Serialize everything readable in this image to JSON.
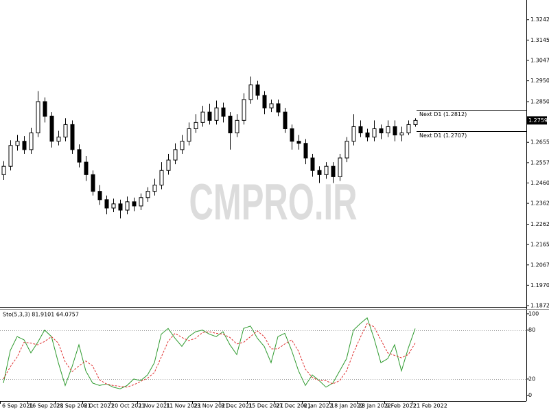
{
  "chart_data": [
    {
      "type": "candlestick",
      "watermark": "CMPRO.IR",
      "categories": [
        "6 Sep 2021",
        null,
        null,
        null,
        "16 Sep 2021",
        null,
        null,
        null,
        "28 Sep 2021",
        null,
        null,
        null,
        "8 Oct 2021",
        null,
        null,
        null,
        "20 Oct 2021",
        null,
        null,
        null,
        "1 Nov 2021",
        null,
        null,
        null,
        "11 Nov 2021",
        null,
        null,
        null,
        "23 Nov 2021",
        null,
        null,
        null,
        "3 Dec 2021",
        null,
        null,
        null,
        "15 Dec 2021",
        null,
        null,
        null,
        "27 Dec 2021",
        null,
        null,
        null,
        "6 Jan 2022",
        null,
        null,
        null,
        "18 Jan 2022",
        null,
        null,
        null,
        "28 Jan 2022",
        null,
        null,
        null,
        "9 Feb 2022",
        null,
        null,
        null,
        "21 Feb 2022"
      ],
      "open": [
        1.25,
        1.254,
        1.264,
        1.266,
        1.262,
        1.27,
        1.285,
        1.278,
        1.266,
        1.268,
        1.274,
        1.262,
        1.256,
        1.25,
        1.242,
        1.238,
        1.234,
        1.236,
        1.233,
        1.237,
        1.235,
        1.239,
        1.242,
        1.245,
        1.252,
        1.257,
        1.262,
        1.266,
        1.272,
        1.275,
        1.28,
        1.276,
        1.282,
        1.278,
        1.27,
        1.276,
        1.286,
        1.293,
        1.288,
        1.282,
        1.284,
        1.28,
        1.272,
        1.266,
        1.265,
        1.258,
        1.252,
        1.25,
        1.254,
        1.249,
        1.258,
        1.266,
        1.273,
        1.27,
        1.268,
        1.272,
        1.27,
        1.273,
        1.269,
        1.27,
        1.274
      ],
      "high": [
        1.2565,
        1.2665,
        1.269,
        1.2685,
        1.2725,
        1.29,
        1.287,
        1.28,
        1.271,
        1.277,
        1.276,
        1.2645,
        1.259,
        1.252,
        1.245,
        1.24,
        1.2385,
        1.238,
        1.2395,
        1.239,
        1.241,
        1.244,
        1.248,
        1.256,
        1.26,
        1.265,
        1.269,
        1.275,
        1.279,
        1.283,
        1.284,
        1.2855,
        1.2845,
        1.28,
        1.279,
        1.289,
        1.297,
        1.295,
        1.29,
        1.286,
        1.286,
        1.282,
        1.274,
        1.269,
        1.267,
        1.26,
        1.254,
        1.256,
        1.256,
        1.26,
        1.268,
        1.279,
        1.276,
        1.272,
        1.276,
        1.274,
        1.276,
        1.276,
        1.273,
        1.276,
        1.277
      ],
      "low": [
        1.2475,
        1.252,
        1.2615,
        1.26,
        1.26,
        1.268,
        1.275,
        1.263,
        1.264,
        1.266,
        1.26,
        1.2535,
        1.247,
        1.24,
        1.2355,
        1.231,
        1.232,
        1.229,
        1.231,
        1.2325,
        1.233,
        1.237,
        1.24,
        1.243,
        1.25,
        1.255,
        1.26,
        1.264,
        1.27,
        1.273,
        1.274,
        1.274,
        1.275,
        1.262,
        1.268,
        1.274,
        1.284,
        1.286,
        1.279,
        1.28,
        1.278,
        1.27,
        1.262,
        1.262,
        1.255,
        1.249,
        1.246,
        1.248,
        1.246,
        1.247,
        1.256,
        1.264,
        1.268,
        1.266,
        1.266,
        1.267,
        1.268,
        1.266,
        1.266,
        1.269,
        1.273
      ],
      "close": [
        1.254,
        1.264,
        1.266,
        1.262,
        1.27,
        1.285,
        1.278,
        1.266,
        1.268,
        1.274,
        1.262,
        1.256,
        1.25,
        1.242,
        1.238,
        1.234,
        1.236,
        1.233,
        1.237,
        1.235,
        1.239,
        1.242,
        1.245,
        1.252,
        1.257,
        1.262,
        1.266,
        1.272,
        1.275,
        1.28,
        1.276,
        1.282,
        1.278,
        1.27,
        1.276,
        1.286,
        1.293,
        1.288,
        1.282,
        1.284,
        1.28,
        1.272,
        1.266,
        1.265,
        1.258,
        1.252,
        1.25,
        1.254,
        1.249,
        1.258,
        1.266,
        1.273,
        1.27,
        1.268,
        1.272,
        1.27,
        1.273,
        1.269,
        1.27,
        1.274,
        1.27599
      ],
      "ylim": [
        1.1866,
        1.3337
      ],
      "yticks": [
        1.32425,
        {
          "value": 1.3145,
          "label": "1.31450"
        },
        1.30475,
        {
          "value": 1.295,
          "label": "1.29500"
        },
        {
          "value": 1.285,
          "label": "1.28500"
        },
        {
          "value": 1.2655,
          "label": "1.26550"
        },
        1.25575,
        {
          "value": 1.246,
          "label": "1.24600"
        },
        1.23625,
        1.22625,
        {
          "value": 1.2165,
          "label": "1.21650"
        },
        1.20675,
        {
          "value": 1.197,
          "label": "1.19700"
        },
        1.18725
      ],
      "lines": [
        {
          "label": "Next D1 (1.2812)",
          "value": 1.2812
        },
        {
          "label": "Next D1 (1.2707)",
          "value": 1.2707
        }
      ]
    },
    {
      "type": "line",
      "title": "Sto(5,3,3) 81.9101 64.0757",
      "series": [
        {
          "color": "#2e9a2e",
          "dash": false,
          "values": [
            15,
            55,
            72,
            68,
            52,
            65,
            80,
            72,
            40,
            12,
            35,
            62,
            30,
            15,
            12,
            14,
            10,
            8,
            12,
            20,
            18,
            25,
            40,
            75,
            82,
            70,
            60,
            72,
            78,
            80,
            75,
            72,
            78,
            62,
            50,
            82,
            85,
            70,
            60,
            40,
            72,
            76,
            55,
            30,
            12,
            25,
            18,
            10,
            15,
            30,
            45,
            80,
            88,
            95,
            70,
            40,
            45,
            62,
            30,
            58,
            81.9101
          ]
        },
        {
          "color": "#e03030",
          "dash": true,
          "values": [
            20,
            35,
            47,
            65,
            64,
            62,
            66,
            72,
            64,
            41,
            29,
            36,
            42,
            36,
            19,
            14,
            12,
            11,
            10,
            13,
            17,
            21,
            28,
            47,
            66,
            76,
            71,
            67,
            70,
            77,
            78,
            76,
            75,
            71,
            63,
            65,
            72,
            79,
            72,
            57,
            57,
            63,
            68,
            54,
            32,
            22,
            18,
            18,
            14,
            18,
            30,
            52,
            71,
            88,
            84,
            68,
            52,
            49,
            46,
            50,
            64.0757
          ]
        }
      ],
      "ylim": [
        -7,
        105
      ],
      "yticks": [
        0,
        20,
        80,
        100
      ]
    }
  ]
}
